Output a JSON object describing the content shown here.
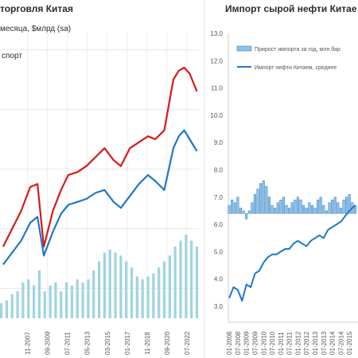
{
  "chart_data": [
    {
      "type": "line",
      "title": "торговля Китая",
      "subtitle": "месяца, $млрд (sa)",
      "legend_text": "спорт",
      "legend_placement": "top-left",
      "grid": true,
      "x_ticks": [
        "11-2007",
        "09-2009",
        "07-2011",
        "05-2013",
        "03-2015",
        "01-2017",
        "11-2018",
        "09-2020",
        "07-2022"
      ],
      "colors": {
        "export": "#d6191b",
        "import": "#1f77c9",
        "bars": "#9fd3e2"
      },
      "series": [
        {
          "kind": "line",
          "color_key": "export",
          "x": [
            "2005-08",
            "2006-06",
            "2007-04",
            "2008-02",
            "2008-10",
            "2009-05",
            "2010-03",
            "2010-12",
            "2011-08",
            "2012-06",
            "2013-04",
            "2014-02",
            "2014-12",
            "2015-10",
            "2016-06",
            "2017-04",
            "2018-02",
            "2018-12",
            "2019-08",
            "2020-06",
            "2021-04",
            "2021-10",
            "2022-04",
            "2022-10",
            "2023-06"
          ],
          "y": [
            0.24,
            0.3,
            0.36,
            0.44,
            0.45,
            0.24,
            0.36,
            0.43,
            0.48,
            0.49,
            0.51,
            0.54,
            0.57,
            0.53,
            0.51,
            0.57,
            0.59,
            0.61,
            0.6,
            0.63,
            0.8,
            0.83,
            0.84,
            0.82,
            0.76
          ]
        },
        {
          "kind": "line",
          "color_key": "import",
          "x": [
            "2005-08",
            "2006-06",
            "2007-04",
            "2008-02",
            "2008-10",
            "2009-05",
            "2010-03",
            "2010-12",
            "2011-08",
            "2012-06",
            "2013-04",
            "2014-02",
            "2014-12",
            "2015-10",
            "2016-06",
            "2017-04",
            "2018-02",
            "2018-12",
            "2019-08",
            "2020-06",
            "2021-04",
            "2021-10",
            "2022-04",
            "2022-10",
            "2023-06"
          ],
          "y": [
            0.18,
            0.22,
            0.26,
            0.32,
            0.34,
            0.21,
            0.29,
            0.35,
            0.38,
            0.39,
            0.4,
            0.42,
            0.43,
            0.39,
            0.37,
            0.41,
            0.45,
            0.48,
            0.46,
            0.43,
            0.57,
            0.61,
            0.63,
            0.6,
            0.56
          ]
        },
        {
          "kind": "bar",
          "color_key": "bars",
          "x": [
            "2005-06",
            "2005-12",
            "2006-06",
            "2006-12",
            "2007-06",
            "2007-12",
            "2008-06",
            "2008-12",
            "2009-06",
            "2009-12",
            "2010-06",
            "2010-12",
            "2011-06",
            "2011-12",
            "2012-06",
            "2012-12",
            "2013-06",
            "2013-12",
            "2014-06",
            "2014-12",
            "2015-06",
            "2015-12",
            "2016-06",
            "2016-12",
            "2017-06",
            "2017-12",
            "2018-06",
            "2018-12",
            "2019-06",
            "2019-12",
            "2020-06",
            "2020-12",
            "2021-06",
            "2021-12",
            "2022-06",
            "2022-12",
            "2023-06"
          ],
          "y": [
            0.05,
            0.06,
            0.08,
            0.09,
            0.12,
            0.13,
            0.11,
            0.16,
            0.09,
            0.11,
            0.12,
            0.09,
            0.12,
            0.11,
            0.13,
            0.12,
            0.13,
            0.16,
            0.19,
            0.22,
            0.23,
            0.22,
            0.21,
            0.19,
            0.17,
            0.14,
            0.13,
            0.14,
            0.15,
            0.17,
            0.19,
            0.21,
            0.24,
            0.26,
            0.28,
            0.26,
            0.24
          ]
        }
      ]
    },
    {
      "type": "line",
      "title": "Импорт сырой нефти Китае",
      "y_ticks": [
        "13.0",
        "12.0",
        "11.0",
        "10.0",
        "9.0",
        "8.0",
        "7.0",
        "6.0",
        "5.0",
        "4.0",
        "3.0"
      ],
      "ylim": [
        3.0,
        13.0
      ],
      "x_ticks": [
        "01-2008",
        "07-2008",
        "01-2009",
        "07-2009",
        "01-2010",
        "07-2010",
        "01-2011",
        "07-2011",
        "01-2012",
        "07-2012",
        "01-2013",
        "07-2013",
        "01-2014",
        "07-2014",
        "01-2015"
      ],
      "grid": false,
      "legend_placement": "top",
      "legend": [
        {
          "label": "Прирост импорта за год, млн бар",
          "kind": "bar"
        },
        {
          "label": "Импорт нефти Китаем, среднее",
          "kind": "line"
        }
      ],
      "colors": {
        "line": "#1f77c9",
        "bars": "#8fc3e8",
        "bar_edge": "#3a7fc0"
      },
      "series": [
        {
          "kind": "line",
          "x": [
            "2008-01",
            "2008-04",
            "2008-07",
            "2008-10",
            "2009-01",
            "2009-04",
            "2009-07",
            "2009-10",
            "2010-01",
            "2010-04",
            "2010-07",
            "2010-10",
            "2011-01",
            "2011-04",
            "2011-07",
            "2011-10",
            "2012-01",
            "2012-04",
            "2012-07",
            "2012-10",
            "2013-01",
            "2013-04",
            "2013-07",
            "2013-10",
            "2014-01",
            "2014-04",
            "2014-07",
            "2014-10",
            "2015-01",
            "2015-05"
          ],
          "y": [
            3.3,
            3.7,
            3.6,
            3.2,
            3.8,
            3.7,
            4.2,
            4.3,
            4.6,
            4.8,
            4.9,
            4.9,
            5.0,
            5.1,
            5.1,
            5.3,
            5.4,
            5.3,
            5.2,
            5.4,
            5.5,
            5.6,
            5.5,
            5.8,
            5.9,
            6.0,
            6.1,
            6.3,
            6.5,
            6.7
          ]
        },
        {
          "kind": "bar",
          "x": [
            "2008-01",
            "2008-03",
            "2008-05",
            "2008-07",
            "2008-09",
            "2008-11",
            "2009-01",
            "2009-03",
            "2009-05",
            "2009-07",
            "2009-09",
            "2009-11",
            "2010-01",
            "2010-03",
            "2010-05",
            "2010-07",
            "2010-09",
            "2010-11",
            "2011-01",
            "2011-03",
            "2011-05",
            "2011-07",
            "2011-09",
            "2011-11",
            "2012-01",
            "2012-03",
            "2012-05",
            "2012-07",
            "2012-09",
            "2012-11",
            "2013-01",
            "2013-03",
            "2013-05",
            "2013-07",
            "2013-09",
            "2013-11",
            "2014-01",
            "2014-03",
            "2014-05",
            "2014-07",
            "2014-09",
            "2014-11",
            "2015-01",
            "2015-03",
            "2015-05"
          ],
          "y": [
            0.3,
            0.5,
            0.4,
            0.6,
            0.2,
            0.1,
            -0.2,
            0.1,
            0.4,
            0.7,
            0.9,
            1.1,
            1.2,
            1.0,
            0.6,
            0.3,
            0.2,
            0.4,
            0.5,
            0.6,
            0.3,
            0.2,
            0.4,
            0.5,
            0.6,
            0.5,
            0.3,
            0.2,
            0.4,
            0.3,
            0.2,
            0.5,
            0.6,
            0.3,
            0.1,
            0.4,
            0.5,
            0.6,
            0.4,
            0.2,
            0.5,
            0.6,
            0.7,
            0.4,
            0.3
          ],
          "baseline": 6.4
        }
      ]
    }
  ]
}
